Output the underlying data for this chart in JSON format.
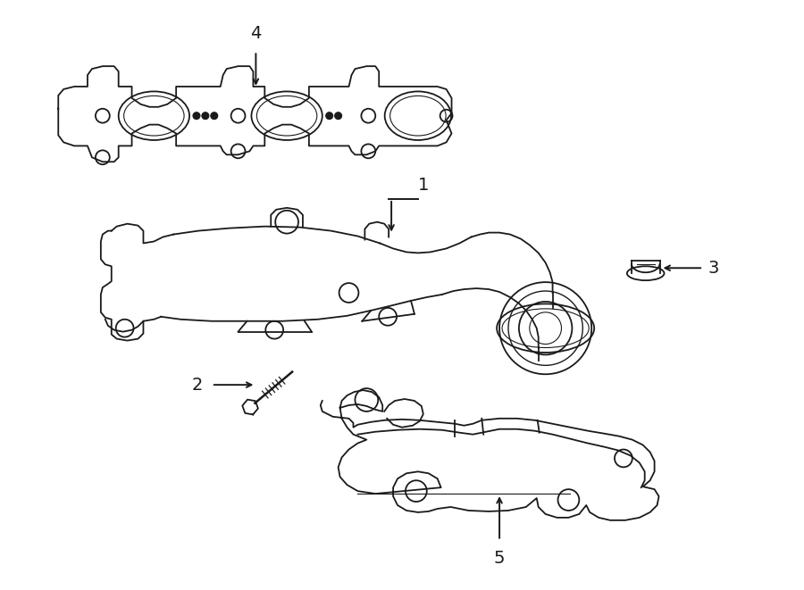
{
  "bg_color": "#ffffff",
  "line_color": "#1a1a1a",
  "lw": 1.3,
  "label_fontsize": 14,
  "figsize": [
    9.0,
    6.61
  ],
  "dpi": 100
}
